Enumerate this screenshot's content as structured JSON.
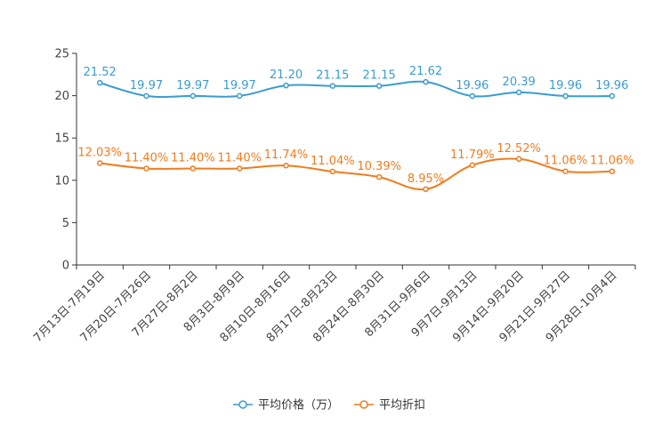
{
  "chart_data": {
    "type": "line",
    "categories": [
      "7月13日-7月19日",
      "7月20日-7月26日",
      "7月27日-8月2日",
      "8月3日-8月9日",
      "8月10日-8月16日",
      "8月17日-8月23日",
      "8月24日-8月30日",
      "8月31日-9月6日",
      "9月7日-9月13日",
      "9月14日-9月20日",
      "9月21日-9月27日",
      "9月28日-10月4日"
    ],
    "ylim": [
      0,
      25
    ],
    "yticks": [
      0,
      5,
      10,
      15,
      20,
      25
    ],
    "series": [
      {
        "name": "平均价格（万）",
        "color": "#3a9ccf",
        "values": [
          21.52,
          19.97,
          19.97,
          19.97,
          21.2,
          21.15,
          21.15,
          21.62,
          19.96,
          20.39,
          19.96,
          19.96
        ],
        "labels": [
          "21.52",
          "19.97",
          "19.97",
          "19.97",
          "21.20",
          "21.15",
          "21.15",
          "21.62",
          "19.96",
          "20.39",
          "19.96",
          "19.96"
        ]
      },
      {
        "name": "平均折扣",
        "color": "#f07c1e",
        "values": [
          12.03,
          11.4,
          11.4,
          11.4,
          11.74,
          11.04,
          10.39,
          8.95,
          11.79,
          12.52,
          11.06,
          11.06
        ],
        "labels": [
          "12.03%",
          "11.40%",
          "11.40%",
          "11.40%",
          "11.74%",
          "11.04%",
          "10.39%",
          "8.95%",
          "11.79%",
          "12.52%",
          "11.06%",
          "11.06%"
        ]
      }
    ]
  }
}
